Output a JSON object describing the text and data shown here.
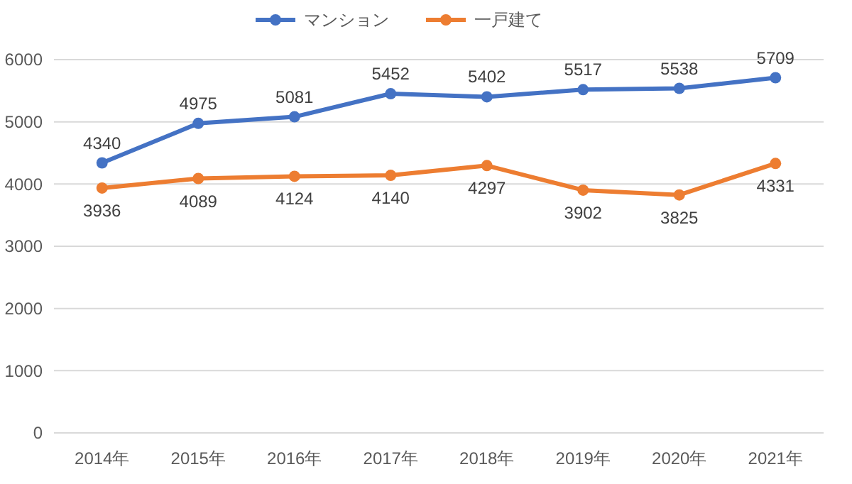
{
  "chart_data": {
    "type": "line",
    "categories": [
      "2014年",
      "2015年",
      "2016年",
      "2017年",
      "2018年",
      "2019年",
      "2020年",
      "2021年"
    ],
    "series": [
      {
        "name": "マンション",
        "color": "#4472c4",
        "values": [
          4340,
          4975,
          5081,
          5452,
          5402,
          5517,
          5538,
          5709
        ]
      },
      {
        "name": "一戸建て",
        "color": "#ed7d31",
        "values": [
          3936,
          4089,
          4124,
          4140,
          4297,
          3902,
          3825,
          4331
        ]
      }
    ],
    "ylim": [
      0,
      6000
    ],
    "yticks": [
      0,
      1000,
      2000,
      3000,
      4000,
      5000,
      6000
    ],
    "grid": "y",
    "legend": "top",
    "marker": "circle",
    "line_style": "solid",
    "data_labels": true
  }
}
